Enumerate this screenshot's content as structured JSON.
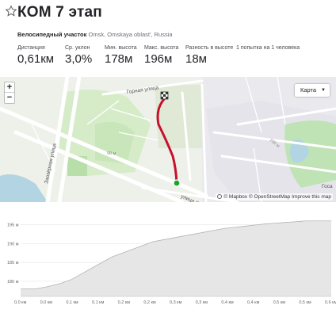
{
  "segment": {
    "title": "КОМ 7 этап",
    "activity_type": "Велосипедный участок",
    "location": "Omsk, Omskaya oblast', Russia"
  },
  "stats": [
    {
      "label": "Дистанция",
      "value": "0,61км"
    },
    {
      "label": "Ср. уклон",
      "value": "3,0%"
    },
    {
      "label": "Мин. высота",
      "value": "178м"
    },
    {
      "label": "Макс. высота",
      "value": "196м"
    },
    {
      "label": "Разность в высоте",
      "value": "18м"
    },
    {
      "label": "1 попытка на 1 человека",
      "value": ""
    }
  ],
  "map": {
    "zoom_in_label": "+",
    "zoom_out_label": "−",
    "map_type_label": "Карта",
    "attribution": "© Mapbox © OpenStreetMap Improve this map",
    "street_labels": [
      "Горная улица",
      "улица Красных Зорь",
      "Заозёрная улица",
      "90 м",
      "100 м",
      "Госа"
    ],
    "colors": {
      "route": "#c8102e",
      "start": "#1ea42b",
      "water": "#b3d4e3",
      "park": "#bfe3b5"
    }
  },
  "chart_data": {
    "type": "area",
    "x_unit": "км",
    "y_unit": "м",
    "x_ticks": [
      "0,0 км",
      "0,0 км",
      "0,1 км",
      "0,1 км",
      "0,2 км",
      "0,2 км",
      "0,3 км",
      "0,3 км",
      "0,4 км",
      "0,4 км",
      "0,5 км",
      "0,5 км",
      "0,6 км"
    ],
    "y_ticks": [
      "180 м",
      "185 м",
      "190 м",
      "195 м"
    ],
    "xlim": [
      0,
      0.61
    ],
    "ylim": [
      176,
      197
    ],
    "x": [
      0,
      0.03,
      0.05,
      0.08,
      0.1,
      0.12,
      0.14,
      0.16,
      0.18,
      0.2,
      0.22,
      0.24,
      0.26,
      0.28,
      0.3,
      0.32,
      0.34,
      0.36,
      0.38,
      0.4,
      0.42,
      0.44,
      0.46,
      0.48,
      0.5,
      0.52,
      0.54,
      0.56,
      0.58,
      0.61
    ],
    "y": [
      178,
      178,
      178.5,
      179.5,
      180.5,
      182,
      183.5,
      185,
      186.5,
      187.5,
      188.5,
      189.5,
      190.5,
      191,
      191.5,
      192,
      192.5,
      193,
      193.5,
      194,
      194.3,
      194.6,
      194.9,
      195.2,
      195.4,
      195.6,
      195.8,
      196,
      196,
      196
    ],
    "grid": true,
    "colors": {
      "fill": "#e6e6e6",
      "line": "#b3b3b3"
    }
  }
}
